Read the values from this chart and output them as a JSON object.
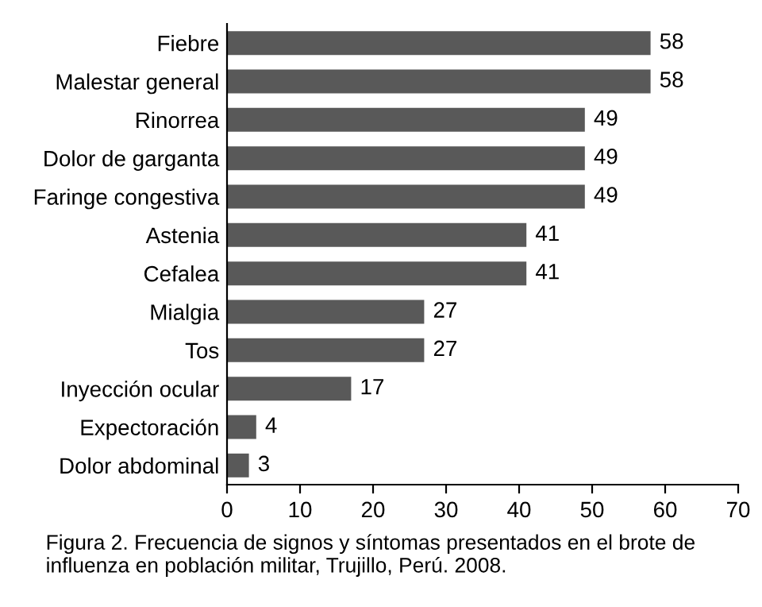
{
  "chart_data": {
    "type": "bar",
    "orientation": "horizontal",
    "categories": [
      "Fiebre",
      "Malestar general",
      "Rinorrea",
      "Dolor de garganta",
      "Faringe congestiva",
      "Astenia",
      "Cefalea",
      "Mialgia",
      "Tos",
      "Inyección ocular",
      "Expectoración",
      "Dolor abdominal"
    ],
    "values": [
      58,
      58,
      49,
      49,
      49,
      41,
      41,
      27,
      27,
      17,
      4,
      3
    ],
    "color": "#595959",
    "data_labels": true,
    "xlim": [
      0,
      70
    ],
    "xticks": [
      0,
      10,
      20,
      30,
      40,
      50,
      60,
      70
    ],
    "grid": false,
    "annotations": [
      "Figura 2. Frecuencia de signos y síntomas presentados en el brote de influenza en población militar, Trujillo, Perú. 2008."
    ]
  }
}
